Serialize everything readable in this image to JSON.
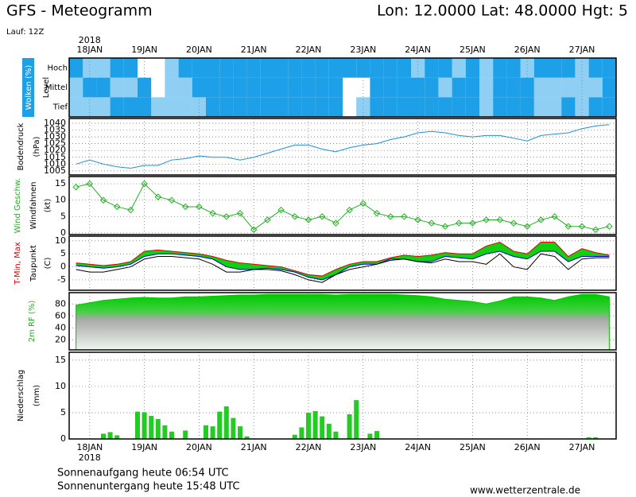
{
  "header": {
    "title": "GFS - Meteogramm",
    "location": "Lon: 12.0000 Lat: 48.0000 Hgt: 5",
    "run": "Lauf: 12Z"
  },
  "footer": {
    "sunrise": "Sonnenaufgang heute 06:54 UTC",
    "sunset": "Sonnenuntergang heute 15:48 UTC",
    "website": "www.wetterzentrale.de"
  },
  "chart_data": [
    {
      "type": "heatmap",
      "ylabel": [
        "Wolken (%)",
        "Level"
      ],
      "year": "2018",
      "xlim": [
        -0.375,
        9.625
      ],
      "xticks": [
        {
          "value": 0,
          "label": "18JAN"
        },
        {
          "value": 1,
          "label": "19JAN"
        },
        {
          "value": 2,
          "label": "20JAN"
        },
        {
          "value": 3,
          "label": "21JAN"
        },
        {
          "value": 4,
          "label": "22JAN"
        },
        {
          "value": 5,
          "label": "23JAN"
        },
        {
          "value": 6,
          "label": "24JAN"
        },
        {
          "value": 7,
          "label": "25JAN"
        },
        {
          "value": 8,
          "label": "26JAN"
        },
        {
          "value": 9,
          "label": "27JAN"
        }
      ],
      "x": [
        -0.25,
        0,
        0.25,
        0.5,
        0.75,
        1,
        1.25,
        1.5,
        1.75,
        2,
        2.25,
        2.5,
        2.75,
        3,
        3.25,
        3.5,
        3.75,
        4,
        4.25,
        4.5,
        4.75,
        5,
        5.25,
        5.5,
        5.75,
        6,
        6.25,
        6.5,
        6.75,
        7,
        7.25,
        7.5,
        7.75,
        8,
        8.25,
        8.5,
        8.75,
        9,
        9.25,
        9.5
      ],
      "color": "#1ea0e8",
      "series": [
        {
          "name": "Hoch",
          "values": [
            100,
            50,
            50,
            100,
            100,
            0,
            0,
            50,
            100,
            100,
            100,
            100,
            100,
            100,
            100,
            100,
            100,
            100,
            100,
            100,
            100,
            100,
            100,
            100,
            100,
            50,
            100,
            100,
            50,
            100,
            50,
            100,
            100,
            50,
            100,
            100,
            100,
            50,
            100,
            100
          ]
        },
        {
          "name": "Mittel",
          "values": [
            50,
            100,
            100,
            50,
            50,
            100,
            0,
            50,
            50,
            100,
            100,
            100,
            100,
            100,
            100,
            100,
            100,
            100,
            100,
            100,
            0,
            0,
            100,
            100,
            100,
            100,
            100,
            50,
            100,
            100,
            50,
            100,
            100,
            100,
            50,
            50,
            50,
            50,
            50,
            100
          ]
        },
        {
          "name": "Tief",
          "values": [
            50,
            50,
            50,
            100,
            100,
            100,
            50,
            50,
            50,
            50,
            100,
            100,
            100,
            100,
            100,
            100,
            100,
            100,
            100,
            100,
            0,
            50,
            100,
            100,
            100,
            100,
            100,
            100,
            100,
            100,
            50,
            100,
            100,
            100,
            50,
            50,
            100,
            50,
            100,
            100
          ]
        }
      ]
    },
    {
      "type": "line",
      "ylabel": [
        "Bodendruck",
        "(hPa)"
      ],
      "xlim": [
        -0.375,
        9.625
      ],
      "ylim": [
        1002,
        1043.5
      ],
      "yticks": [
        1005,
        1010,
        1015,
        1020,
        1025,
        1030,
        1035,
        1040
      ],
      "x": [
        -0.25,
        0,
        0.25,
        0.5,
        0.75,
        1,
        1.25,
        1.5,
        1.75,
        2,
        2.25,
        2.5,
        2.75,
        3,
        3.25,
        3.5,
        3.75,
        4,
        4.25,
        4.5,
        4.75,
        5,
        5.25,
        5.5,
        5.75,
        6,
        6.25,
        6.5,
        6.75,
        7,
        7.25,
        7.5,
        7.75,
        8,
        8.25,
        8.5,
        8.75,
        9,
        9.25,
        9.5
      ],
      "series": [
        {
          "color": "#1e90d8",
          "values": [
            1010,
            1013,
            1010,
            1008,
            1007,
            1009,
            1009,
            1013,
            1014,
            1016,
            1015,
            1015,
            1013,
            1015,
            1018,
            1021,
            1024,
            1024,
            1021,
            1019,
            1022,
            1024,
            1025,
            1028,
            1030,
            1033,
            1034,
            1033,
            1031,
            1030,
            1031,
            1031,
            1029,
            1027,
            1031,
            1032,
            1033,
            1036,
            1038,
            1039
          ]
        }
      ]
    },
    {
      "type": "line",
      "ylabel": [
        "Wind Geschw.",
        "Windfahnen",
        "(kt)"
      ],
      "markers": true,
      "xlim": [
        -0.375,
        9.625
      ],
      "ylim": [
        -0.5,
        17.2
      ],
      "yticks": [
        0,
        5,
        10,
        15
      ],
      "x": [
        -0.25,
        0,
        0.25,
        0.5,
        0.75,
        1,
        1.25,
        1.5,
        1.75,
        2,
        2.25,
        2.5,
        2.75,
        3,
        3.25,
        3.5,
        3.75,
        4,
        4.25,
        4.5,
        4.75,
        5,
        5.25,
        5.5,
        5.75,
        6,
        6.25,
        6.5,
        6.75,
        7,
        7.25,
        7.5,
        7.75,
        8,
        8.25,
        8.5,
        8.75,
        9,
        9.25,
        9.5
      ],
      "series": [
        {
          "color": "#22b022",
          "values": [
            14,
            15,
            10,
            8,
            7,
            15,
            11,
            10,
            8,
            8,
            6,
            5,
            6,
            1,
            4,
            7,
            5,
            4,
            5,
            3,
            7,
            9,
            6,
            5,
            5,
            4,
            3,
            2,
            3,
            3,
            4,
            4,
            3,
            2,
            4,
            5,
            2,
            2,
            1,
            2
          ]
        }
      ]
    },
    {
      "type": "line",
      "ylabel": [
        "T-Min, Max",
        "Taupunkt",
        "(C)"
      ],
      "fill_between": true,
      "fill_color": "#10d010",
      "xlim": [
        -0.375,
        9.625
      ],
      "ylim": [
        -9,
        11.8
      ],
      "yticks": [
        -5,
        0,
        5,
        10
      ],
      "x": [
        -0.25,
        0,
        0.25,
        0.5,
        0.75,
        1,
        1.25,
        1.5,
        1.75,
        2,
        2.25,
        2.5,
        2.75,
        3,
        3.25,
        3.5,
        3.75,
        4,
        4.25,
        4.5,
        4.75,
        5,
        5.25,
        5.5,
        5.75,
        6,
        6.25,
        6.5,
        6.75,
        7,
        7.25,
        7.5,
        7.75,
        8,
        8.25,
        8.5,
        8.75,
        9,
        9.25,
        9.5
      ],
      "series": [
        {
          "name": "T-Min",
          "color": "#0000e0",
          "values": [
            0.5,
            0,
            -0.5,
            0,
            1,
            4,
            5,
            5,
            4.5,
            4,
            3,
            0,
            -1,
            -1,
            -0.5,
            -1,
            -2,
            -4,
            -5,
            -3,
            0,
            1,
            1,
            3,
            3,
            2,
            2,
            4,
            3.5,
            3,
            5,
            6,
            4,
            3,
            6,
            6,
            2,
            4,
            4,
            4
          ]
        },
        {
          "name": "Max",
          "color": "#e00000",
          "values": [
            1.5,
            1,
            0.5,
            1,
            2,
            6,
            6.5,
            6,
            5.5,
            5,
            4,
            2.5,
            1.5,
            1,
            0.5,
            0,
            -1.5,
            -3,
            -3.5,
            -1,
            1,
            2,
            2,
            3.5,
            4.5,
            4,
            4.5,
            5.5,
            5,
            5,
            8,
            9.5,
            6,
            5,
            9.5,
            9.5,
            4,
            7,
            5.5,
            4.5
          ]
        },
        {
          "name": "Taupunkt",
          "color": "#000000",
          "values": [
            -1,
            -2,
            -2,
            -1,
            0,
            3,
            4,
            4,
            3.5,
            3,
            1,
            -2,
            -2,
            -1,
            -1,
            -1.5,
            -3,
            -5,
            -6,
            -3,
            -1,
            0,
            1,
            2.5,
            3,
            2,
            1.5,
            3,
            2,
            2,
            1,
            5,
            0,
            -1,
            5,
            4,
            -1,
            3,
            3.5,
            3.5
          ]
        }
      ]
    },
    {
      "type": "area",
      "ylabel": [
        "2m RF (%)"
      ],
      "xlim": [
        -0.375,
        9.625
      ],
      "ylim": [
        3,
        99
      ],
      "yticks": [
        20,
        40,
        60,
        80
      ],
      "x": [
        -0.25,
        0,
        0.25,
        0.5,
        0.75,
        1,
        1.25,
        1.5,
        1.75,
        2,
        2.25,
        2.5,
        2.75,
        3,
        3.25,
        3.5,
        3.75,
        4,
        4.25,
        4.5,
        4.75,
        5,
        5.25,
        5.5,
        5.75,
        6,
        6.25,
        6.5,
        6.75,
        7,
        7.25,
        7.5,
        7.75,
        8,
        8.25,
        8.5,
        8.75,
        9,
        9.25,
        9.5
      ],
      "series": [
        {
          "color": "#00c800",
          "values": [
            78,
            82,
            86,
            88,
            90,
            91,
            90,
            90,
            92,
            92,
            93,
            94,
            95,
            95,
            96,
            96,
            96,
            96,
            96,
            95,
            96,
            96,
            96,
            96,
            95,
            94,
            92,
            88,
            86,
            84,
            80,
            85,
            92,
            92,
            90,
            86,
            92,
            96,
            96,
            92
          ]
        }
      ]
    },
    {
      "type": "bar",
      "ylabel": [
        "Niederschlag",
        "(mm)"
      ],
      "year": "2018",
      "xlim": [
        -0.375,
        9.625
      ],
      "ylim": [
        0,
        16.5
      ],
      "yticks": [
        0,
        5,
        10,
        15
      ],
      "xticks": [
        {
          "value": 0,
          "label": "18JAN"
        },
        {
          "value": 1,
          "label": "19JAN"
        },
        {
          "value": 2,
          "label": "20JAN"
        },
        {
          "value": 3,
          "label": "21JAN"
        },
        {
          "value": 4,
          "label": "22JAN"
        },
        {
          "value": 5,
          "label": "23JAN"
        },
        {
          "value": 6,
          "label": "24JAN"
        },
        {
          "value": 7,
          "label": "25JAN"
        },
        {
          "value": 8,
          "label": "26JAN"
        },
        {
          "value": 9,
          "label": "27JAN"
        }
      ],
      "color": "#22cc22",
      "x": [
        0.25,
        0.375,
        0.5,
        0.875,
        1,
        1.125,
        1.25,
        1.375,
        1.5,
        1.75,
        2.125,
        2.25,
        2.375,
        2.5,
        2.625,
        2.75,
        2.875,
        3.75,
        3.875,
        4,
        4.125,
        4.25,
        4.375,
        4.5,
        4.75,
        4.875,
        5.125,
        5.25,
        9.125,
        9.25
      ],
      "values": [
        1.0,
        1.3,
        0.7,
        5.2,
        5.1,
        4.4,
        3.8,
        2.6,
        1.4,
        1.6,
        2.6,
        2.4,
        5.2,
        6.2,
        4,
        2.4,
        0.5,
        0.8,
        2.2,
        5.0,
        5.3,
        4.3,
        2.9,
        1.4,
        4.7,
        7.4,
        1.0,
        1.5,
        0.3,
        0.3
      ]
    }
  ]
}
